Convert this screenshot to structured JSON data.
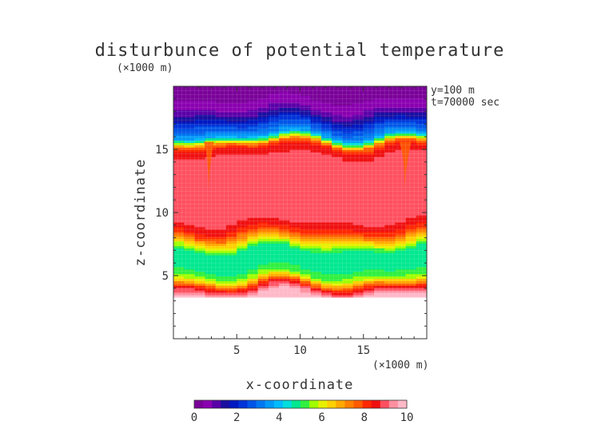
{
  "chart_data": {
    "type": "heatmap",
    "title": "disturbunce of potential temperature",
    "x_unit_label": "(×1000 m)",
    "z_unit_label": "(×1000 m)",
    "info_lines": [
      "y=100 m",
      "t=70000 sec"
    ],
    "xlabel": "x-coordinate",
    "ylabel": "z-coordinate",
    "xlim": [
      0,
      20
    ],
    "ylim": [
      0,
      20
    ],
    "x_ticks": [
      "5",
      "10",
      "15"
    ],
    "y_ticks": [
      "5",
      "10",
      "15"
    ],
    "colorbar": {
      "range": [
        0,
        10
      ],
      "ticks": [
        "0",
        "2",
        "4",
        "6",
        "8",
        "10"
      ],
      "colors": [
        "#7a0099",
        "#8a00b0",
        "#5a00a8",
        "#1a0fa0",
        "#0018c0",
        "#0033d8",
        "#0055e8",
        "#0077f0",
        "#0099f8",
        "#00bbff",
        "#00dddd",
        "#00e890",
        "#30f040",
        "#a0ff00",
        "#e8f000",
        "#ffd000",
        "#ffa800",
        "#ff8000",
        "#ff5a00",
        "#ff2800",
        "#f01010",
        "#ff5060",
        "#ff90a0",
        "#ffb8c8"
      ]
    },
    "profile": {
      "z": [
        3.3,
        3.6,
        3.9,
        4.2,
        4.5,
        4.8,
        5.1,
        5.5,
        5.9,
        6.3,
        6.7,
        7.1,
        7.4,
        7.7,
        8.0,
        8.3,
        8.6,
        9.0,
        9.5,
        10.5,
        12.0,
        13.5,
        15.0,
        15.5,
        15.8,
        16.1,
        16.5,
        17.0,
        17.5,
        18.0,
        18.5,
        19.5
      ],
      "value": [
        9.9,
        9.5,
        8.9,
        8.2,
        7.0,
        5.9,
        5.3,
        5.0,
        4.8,
        4.6,
        4.7,
        5.0,
        5.6,
        6.3,
        7.0,
        7.7,
        8.2,
        8.6,
        8.9,
        9.1,
        9.0,
        8.9,
        8.7,
        7.5,
        5.5,
        3.8,
        3.0,
        2.4,
        1.6,
        1.0,
        0.6,
        0.2
      ]
    },
    "value_range_min_z": 3.3,
    "data_max_z": 19.5
  }
}
